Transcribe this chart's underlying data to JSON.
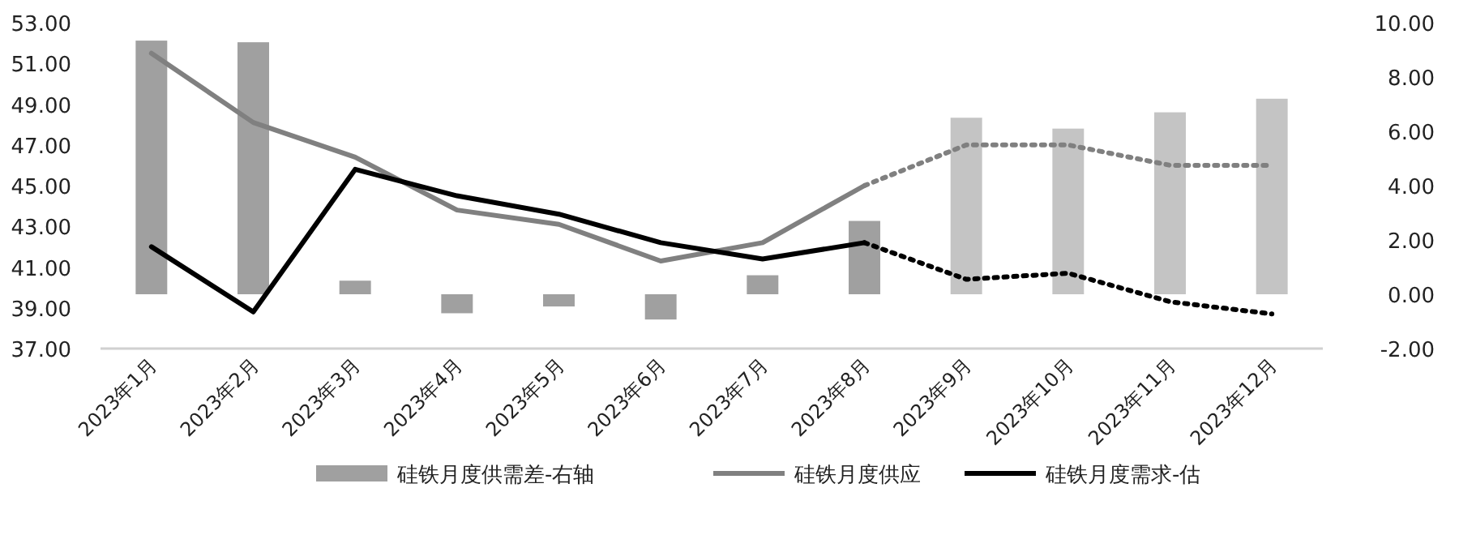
{
  "chart_data": {
    "type": "line",
    "categories": [
      "2023年1月",
      "2023年2月",
      "2023年3月",
      "2023年4月",
      "2023年5月",
      "2023年6月",
      "2023年7月",
      "2023年8月",
      "2023年9月",
      "2023年10月",
      "2023年11月",
      "2023年12月"
    ],
    "ylim": [
      37,
      53
    ],
    "yticks": [
      {
        "value": 37,
        "label": "37.00"
      },
      {
        "value": 39,
        "label": "39.00"
      },
      {
        "value": 41,
        "label": "41.00"
      },
      {
        "value": 43,
        "label": "43.00"
      },
      {
        "value": 45,
        "label": "45.00"
      },
      {
        "value": 47,
        "label": "47.00"
      },
      {
        "value": 49,
        "label": "49.00"
      },
      {
        "value": 51,
        "label": "51.00"
      },
      {
        "value": 53,
        "label": "53.00"
      }
    ],
    "y2lim": [
      -2,
      10
    ],
    "y2ticks": [
      {
        "value": -2,
        "label": "-2.00"
      },
      {
        "value": 0,
        "label": "0.00"
      },
      {
        "value": 2,
        "label": "2.00"
      },
      {
        "value": 4,
        "label": "4.00"
      },
      {
        "value": 6,
        "label": "6.00"
      },
      {
        "value": 8,
        "label": "8.00"
      },
      {
        "value": 10,
        "label": "10.00"
      }
    ],
    "legend": "bottom",
    "marker": "none",
    "series": [
      {
        "name": "硅铁月度供需差-右轴",
        "type": "bar",
        "axis": "y2",
        "color": "#a0a0a0",
        "values": [
          9.34,
          9.28,
          0.5,
          -0.7,
          -0.45,
          -0.93,
          0.7,
          2.7,
          null,
          null,
          null,
          null
        ]
      },
      {
        "type": "bar",
        "axis": "y2",
        "color": "#c4c4c4",
        "values": [
          null,
          null,
          null,
          null,
          null,
          null,
          null,
          null,
          6.5,
          6.1,
          6.7,
          7.2
        ]
      },
      {
        "name": "硅铁月度供应",
        "color": "#808080",
        "line_style": "solid",
        "values": [
          51.5,
          48.1,
          46.4,
          43.8,
          43.1,
          41.3,
          42.2,
          45.0,
          null,
          null,
          null,
          null
        ]
      },
      {
        "color": "#808080",
        "line_style": "dotted",
        "values": [
          null,
          null,
          null,
          null,
          null,
          null,
          null,
          45.0,
          47.0,
          47.0,
          46.0,
          46.0
        ]
      },
      {
        "name": "硅铁月度需求-估",
        "color": "#000000",
        "line_style": "solid",
        "values": [
          42.0,
          38.8,
          45.8,
          44.5,
          43.6,
          42.2,
          41.4,
          42.2,
          null,
          null,
          null,
          null
        ]
      },
      {
        "color": "#000000",
        "line_style": "dotted",
        "values": [
          null,
          null,
          null,
          null,
          null,
          null,
          null,
          42.2,
          40.4,
          40.7,
          39.3,
          38.7
        ]
      }
    ]
  }
}
